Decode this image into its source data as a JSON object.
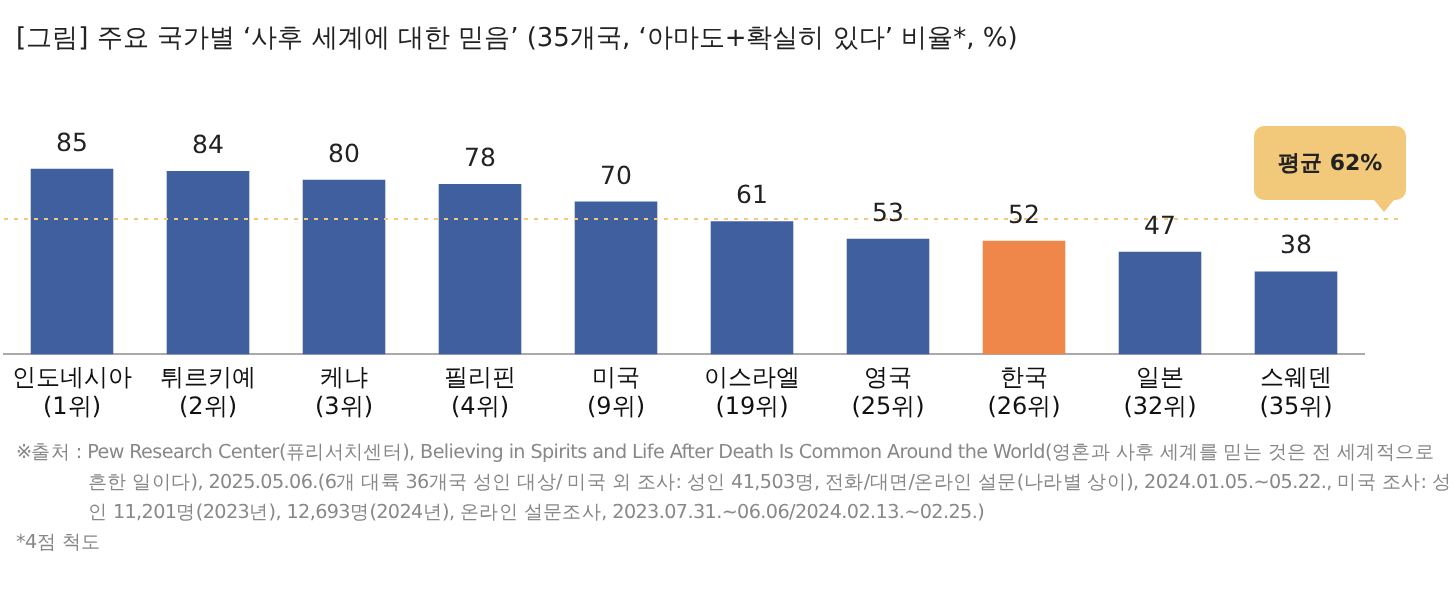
{
  "chart_data": {
    "type": "bar",
    "title": "[그림] 주요 국가별 ‘사후 세계에 대한 믿음’ (35개국, ‘아마도+확실히 있다’ 비율*, %)",
    "categories": [
      "인도네시아\n(1위)",
      "튀르키예\n(2위)",
      "케냐\n(3위)",
      "필리핀\n(4위)",
      "미국\n(9위)",
      "이스라엘\n(19위)",
      "영국\n(25위)",
      "한국\n(26위)",
      "일본\n(32위)",
      "스웨덴\n(35위)"
    ],
    "values": [
      85,
      84,
      80,
      78,
      70,
      61,
      53,
      52,
      47,
      38
    ],
    "colors": [
      "#3f5f9e",
      "#3f5f9e",
      "#3f5f9e",
      "#3f5f9e",
      "#3f5f9e",
      "#3f5f9e",
      "#3f5f9e",
      "#f0874a",
      "#3f5f9e",
      "#3f5f9e"
    ],
    "data_labels": true,
    "legend": false,
    "grid": false,
    "ref_lines": [
      {
        "axis": "y",
        "value": 62,
        "label": "평균 62%",
        "color": "#f2c97a",
        "line_style": "dotted"
      }
    ],
    "annotations": [
      "※출처 : Pew Research Center(퓨리서치센터), Believing in Spirits and Life After Death Is Common Around the World(영혼과 사후 세계를 믿는 것은 전 세계적으로 흔한 일이다), 2025.05.06.(6개 대륙 36개국 성인 대상/ 미국 외 조사: 성인 41,503명, 전화/대면/온라인 설문(나라별 상이), 2024.01.05.~05.22., 미국 조사: 성인 11,201명(2023년), 12,693명(2024년), 온라인 설문조사, 2023.07.31.~06.06/2024.02.13.~02.25.)",
      "*4점 척도"
    ]
  }
}
